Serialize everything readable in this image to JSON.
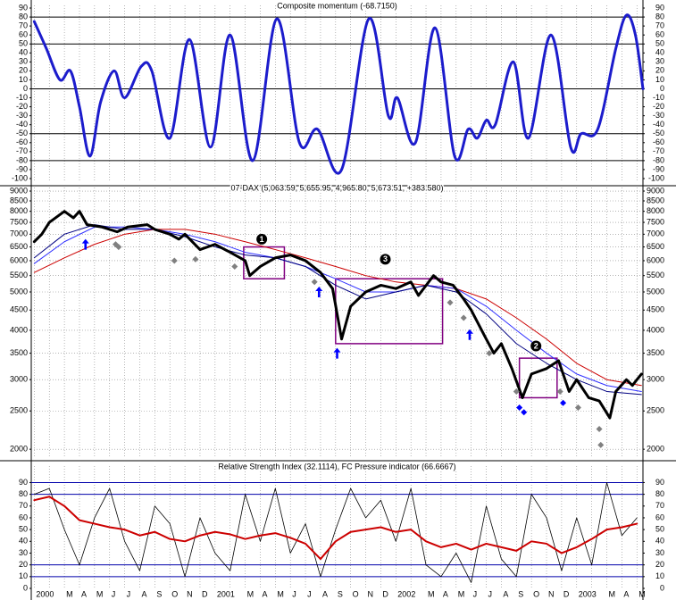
{
  "chart_data": [
    {
      "type": "line",
      "title": "Composite momentum (-68.7150)",
      "xlim": [
        -0.2,
        40.4
      ],
      "ylim": [
        -103,
        93
      ],
      "yticks": [
        -100,
        -90,
        -80,
        -70,
        -60,
        -50,
        -40,
        -30,
        -20,
        -10,
        0,
        10,
        20,
        30,
        40,
        50,
        60,
        70,
        80,
        90
      ],
      "grid": false,
      "hlines": [
        80,
        50,
        0,
        -50,
        -80
      ],
      "hline_color": "#000000",
      "series": [
        {
          "color": "#1c1ccc",
          "line_width": 3,
          "smooth": true,
          "x": [
            0,
            0.8,
            1.7,
            2.4,
            3.0,
            3.7,
            4.4,
            5.3,
            6.0,
            7.1,
            7.8,
            9.0,
            10.3,
            11.7,
            13.0,
            14.5,
            16.1,
            17.6,
            18.8,
            20.4,
            22.2,
            23.5,
            24.1,
            25.3,
            26.6,
            27.9,
            28.8,
            29.4,
            30.0,
            30.6,
            31.8,
            32.8,
            34.3,
            35.6,
            36.3,
            37.4,
            38.6,
            39.3,
            39.9,
            40.4
          ],
          "values": [
            75,
            45,
            10,
            20,
            -20,
            -75,
            -15,
            20,
            -10,
            25,
            20,
            -55,
            55,
            -65,
            60,
            -80,
            78,
            -60,
            -45,
            -90,
            78,
            -30,
            -10,
            -60,
            68,
            -75,
            -45,
            -55,
            -35,
            -40,
            30,
            -55,
            60,
            -65,
            -50,
            -45,
            45,
            82,
            60,
            0
          ]
        }
      ]
    },
    {
      "type": "line",
      "title": "07-DAX (5,063.59, 5,655.95, 4,965.80, 5,673.51, +383.580)",
      "xlim": [
        -0.2,
        40.4
      ],
      "ylim": [
        1910,
        9190
      ],
      "log_scale": true,
      "yticks": [
        2000,
        2500,
        3000,
        3500,
        4000,
        4500,
        5000,
        5500,
        6000,
        6500,
        7000,
        7500,
        8000,
        8500,
        9000
      ],
      "grid": true,
      "x": [
        0,
        2,
        4,
        6,
        8,
        10,
        12,
        14,
        16,
        18,
        20,
        22,
        24,
        26,
        28,
        30,
        32,
        34,
        36,
        38,
        40.3
      ],
      "series": [
        {
          "color": "#cc0000",
          "line_width": 1,
          "values": [
            5600,
            6100,
            6600,
            7000,
            7200,
            7200,
            7000,
            6700,
            6400,
            6100,
            5800,
            5500,
            5300,
            5200,
            5100,
            4800,
            4300,
            3800,
            3300,
            3000,
            2900
          ]
        },
        {
          "color": "#3030ff",
          "line_width": 1,
          "values": [
            5900,
            6700,
            7300,
            7300,
            7200,
            7000,
            6700,
            6300,
            6100,
            5800,
            5400,
            5000,
            5000,
            5200,
            5100,
            4600,
            4000,
            3500,
            3100,
            2900,
            2800
          ]
        },
        {
          "color": "#000080",
          "line_width": 1,
          "values": [
            6100,
            7000,
            7400,
            7200,
            7200,
            6900,
            6500,
            6200,
            6100,
            5800,
            5200,
            4800,
            5000,
            5200,
            5000,
            4400,
            3700,
            3300,
            3000,
            2800,
            2750
          ]
        },
        {
          "color": "#000000",
          "line_width": 3,
          "x": [
            0,
            0.5,
            1,
            2,
            2.6,
            3,
            3.5,
            4.5,
            5.5,
            6.2,
            7.5,
            8,
            9,
            9.6,
            10,
            11,
            12,
            13,
            14,
            14.3,
            15,
            16,
            17,
            18,
            19,
            19.8,
            20.4,
            21,
            22,
            23,
            24,
            25,
            25.5,
            26.5,
            27,
            27.8,
            28.5,
            29,
            30,
            30.5,
            31,
            31.7,
            32.4,
            33,
            34,
            34.8,
            35.5,
            36,
            36.8,
            37.5,
            38.2,
            38.6,
            39.3,
            39.7,
            40,
            40.3
          ],
          "values": [
            6700,
            7000,
            7500,
            8000,
            7700,
            8000,
            7400,
            7300,
            7100,
            7300,
            7400,
            7200,
            7000,
            6800,
            7000,
            6400,
            6600,
            6300,
            6000,
            5500,
            5800,
            6100,
            6200,
            6000,
            5600,
            5100,
            3800,
            4600,
            5000,
            5200,
            5100,
            5300,
            4900,
            5500,
            5300,
            5200,
            4800,
            4500,
            3800,
            3500,
            3700,
            3200,
            2700,
            3100,
            3200,
            3350,
            2800,
            3000,
            2700,
            2650,
            2400,
            2800,
            3000,
            2900,
            3000,
            3100
          ]
        }
      ],
      "markers": [
        {
          "shape": "arrow",
          "color": "#0000ff",
          "x": [
            3.4,
            18.9,
            20.1,
            28.9
          ],
          "values": [
            6600,
            5000,
            3500,
            3900
          ]
        },
        {
          "shape": "diamond",
          "color": "#0000ff",
          "x": [
            32.2,
            32.5,
            35.1
          ],
          "values": [
            2550,
            2480,
            2620
          ]
        },
        {
          "shape": "diamond",
          "color": "#808080",
          "x": [
            5.4,
            5.6,
            9.3,
            10.7,
            13.3,
            18.6,
            27.6,
            28.5,
            30.2,
            32,
            34.9,
            36.1,
            37.5,
            37.6
          ],
          "values": [
            6600,
            6500,
            6000,
            6050,
            5800,
            5300,
            4700,
            4300,
            3500,
            2800,
            2800,
            2550,
            2250,
            2050
          ]
        }
      ],
      "boxes": [
        {
          "color": "#800080",
          "x": [
            13.9,
            16.6
          ],
          "y": [
            5400,
            6500
          ]
        },
        {
          "color": "#800080",
          "x": [
            20.0,
            27.1
          ],
          "y": [
            3700,
            5400
          ]
        },
        {
          "color": "#800080",
          "x": [
            32.2,
            34.7
          ],
          "y": [
            2700,
            3400
          ]
        }
      ],
      "annotations": [
        {
          "text": "1",
          "x": 15.1,
          "y": 6800
        },
        {
          "text": "3",
          "x": 23.3,
          "y": 6050
        },
        {
          "text": "2",
          "x": 33.3,
          "y": 3650
        }
      ]
    },
    {
      "type": "line",
      "title": "Relative Strength Index (32.1114), FC Pressure indicator (66.6667)",
      "xlim": [
        -0.2,
        40.4
      ],
      "ylim": [
        0,
        104
      ],
      "yticks": [
        0,
        10,
        20,
        30,
        40,
        50,
        60,
        70,
        80,
        90
      ],
      "grid": false,
      "hlines": [
        10,
        20,
        80,
        90
      ],
      "hline_color": "#0000aa",
      "categories": [
        "2000",
        null,
        "M",
        "A",
        "M",
        "J",
        "J",
        "A",
        "S",
        "O",
        "N",
        "D",
        "2001",
        null,
        "M",
        "A",
        "M",
        "J",
        "J",
        "A",
        "S",
        "O",
        "N",
        "D",
        "2002",
        null,
        "M",
        "A",
        "M",
        "J",
        "J",
        "A",
        "S",
        "O",
        "N",
        "D",
        "2003",
        null,
        "M",
        "A",
        "M"
      ],
      "x": [
        0,
        1,
        2,
        3,
        4,
        5,
        6,
        7,
        8,
        9,
        10,
        11,
        12,
        13,
        14,
        15,
        16,
        17,
        18,
        19,
        20,
        21,
        22,
        23,
        24,
        25,
        26,
        27,
        28,
        29,
        30,
        31,
        32,
        33,
        34,
        35,
        36,
        37,
        38,
        39,
        40
      ],
      "series": [
        {
          "color": "#000000",
          "line_width": 0.8,
          "values": [
            80,
            85,
            50,
            20,
            60,
            85,
            40,
            15,
            70,
            55,
            10,
            60,
            30,
            15,
            80,
            40,
            85,
            30,
            55,
            10,
            50,
            85,
            60,
            75,
            40,
            85,
            20,
            10,
            30,
            5,
            70,
            25,
            10,
            80,
            60,
            15,
            60,
            20,
            90,
            45,
            60
          ]
        },
        {
          "color": "#cc0000",
          "line_width": 2,
          "values": [
            75,
            78,
            70,
            58,
            55,
            52,
            50,
            45,
            48,
            42,
            40,
            45,
            48,
            46,
            42,
            45,
            47,
            43,
            38,
            25,
            40,
            48,
            50,
            52,
            48,
            50,
            40,
            35,
            38,
            33,
            38,
            35,
            32,
            40,
            38,
            30,
            35,
            42,
            50,
            52,
            55
          ]
        }
      ]
    }
  ]
}
